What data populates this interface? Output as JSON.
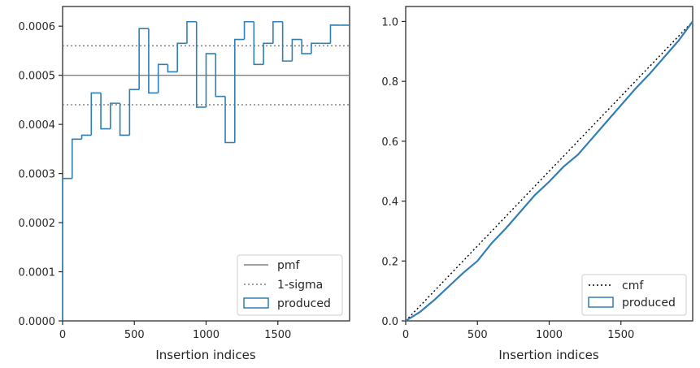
{
  "chart_data": [
    {
      "type": "histogram-step",
      "xlabel": "Insertion indices",
      "ylabel": "",
      "xlim": [
        0,
        2000
      ],
      "ylim": [
        0,
        0.00064
      ],
      "xticks": [
        0,
        500,
        1000,
        1500
      ],
      "yticks": [
        0.0,
        0.0001,
        0.0002,
        0.0003,
        0.0004,
        0.0005,
        0.0006
      ],
      "ytick_labels": [
        "0.0000",
        "0.0001",
        "0.0002",
        "0.0003",
        "0.0004",
        "0.0005",
        "0.0006"
      ],
      "bin_width": 66.67,
      "values": [
        0.00029,
        0.00037,
        0.000378,
        0.000464,
        0.000391,
        0.000443,
        0.000378,
        0.000471,
        0.000595,
        0.000464,
        0.000522,
        0.000507,
        0.000565,
        0.000609,
        0.000435,
        0.000544,
        0.000457,
        0.000363,
        0.000573,
        0.000609,
        0.000522,
        0.000565,
        0.000609,
        0.000529,
        0.000573,
        0.000544,
        0.000565,
        0.000565,
        0.000602,
        0.000602
      ],
      "pmf": 0.0005,
      "sigma_band": [
        0.00044,
        0.00056
      ],
      "legend": [
        "pmf",
        "1-sigma",
        "produced"
      ],
      "legend_position": "lower-right",
      "colors": {
        "produced": "#2f7fb5",
        "pmf": "#808080",
        "sigma": "#808080"
      }
    },
    {
      "type": "line",
      "xlabel": "Insertion indices",
      "ylabel": "",
      "xlim": [
        0,
        2000
      ],
      "ylim": [
        0,
        1.05
      ],
      "xticks": [
        0,
        500,
        1000,
        1500
      ],
      "yticks": [
        0.0,
        0.2,
        0.4,
        0.6,
        0.8,
        1.0
      ],
      "ytick_labels": [
        "0.0",
        "0.2",
        "0.4",
        "0.6",
        "0.8",
        "1.0"
      ],
      "cmf": {
        "x": [
          0,
          2000
        ],
        "y": [
          0,
          1
        ]
      },
      "produced": {
        "x": [
          0,
          100,
          200,
          300,
          400,
          500,
          600,
          700,
          800,
          900,
          1000,
          1100,
          1200,
          1300,
          1400,
          1500,
          1600,
          1700,
          1800,
          1900,
          2000
        ],
        "y": [
          0,
          0.03,
          0.07,
          0.115,
          0.16,
          0.2,
          0.26,
          0.31,
          0.365,
          0.42,
          0.465,
          0.515,
          0.555,
          0.61,
          0.665,
          0.72,
          0.775,
          0.825,
          0.88,
          0.935,
          1.0
        ]
      },
      "legend": [
        "cmf",
        "produced"
      ],
      "legend_position": "lower-right",
      "colors": {
        "produced": "#2f7fb5",
        "cmf": "#000000"
      }
    }
  ]
}
